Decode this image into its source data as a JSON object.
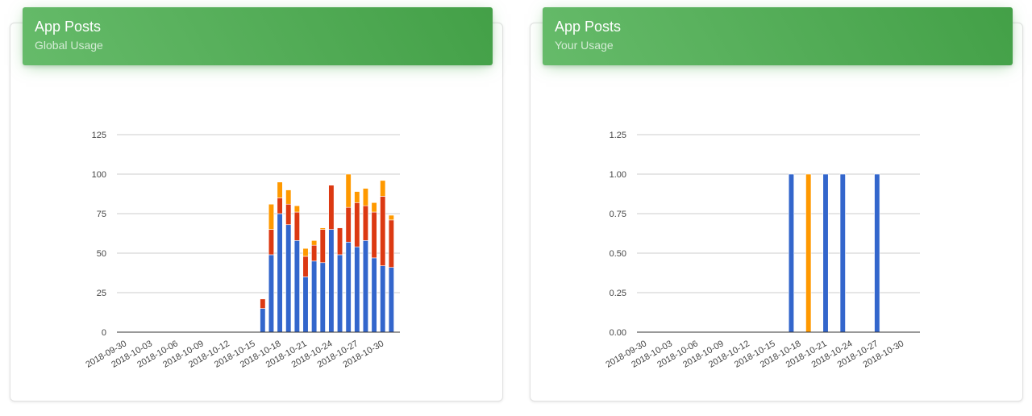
{
  "cards": [
    {
      "title": "App Posts",
      "subtitle": "Global Usage"
    },
    {
      "title": "App Posts",
      "subtitle": "Your Usage"
    }
  ],
  "colors": {
    "series1": "#3366cc",
    "series2": "#dc3912",
    "series3": "#ff9900",
    "header": "#4caf50"
  },
  "chart_data": [
    {
      "type": "bar",
      "stacked": true,
      "title": "",
      "xlabel": "",
      "ylabel": "",
      "ylim": [
        0,
        125
      ],
      "y_ticks": [
        "0",
        "25",
        "50",
        "75",
        "100",
        "125"
      ],
      "x_tick_labels": [
        "2018-09-30",
        "2018-10-03",
        "2018-10-06",
        "2018-10-09",
        "2018-10-12",
        "2018-10-15",
        "2018-10-18",
        "2018-10-21",
        "2018-10-24",
        "2018-10-27",
        "2018-10-30"
      ],
      "grid": true,
      "categories": [
        "2018-10-16",
        "2018-10-17",
        "2018-10-18",
        "2018-10-19",
        "2018-10-20",
        "2018-10-21",
        "2018-10-22",
        "2018-10-23",
        "2018-10-24",
        "2018-10-25",
        "2018-10-26",
        "2018-10-27",
        "2018-10-28",
        "2018-10-29",
        "2018-10-30",
        "2018-10-31"
      ],
      "series": [
        {
          "values": [
            15,
            49,
            75,
            68,
            58,
            35,
            45,
            44,
            65,
            49,
            57,
            54,
            58,
            47,
            42,
            41
          ]
        },
        {
          "values": [
            6,
            16,
            10,
            13,
            18,
            13,
            10,
            21,
            28,
            17,
            22,
            28,
            22,
            29,
            44,
            30
          ]
        },
        {
          "values": [
            0,
            16,
            10,
            9,
            4,
            5,
            3,
            1,
            0,
            0,
            21,
            7,
            11,
            6,
            10,
            3
          ]
        }
      ]
    },
    {
      "type": "bar",
      "stacked": true,
      "title": "",
      "xlabel": "",
      "ylabel": "",
      "ylim": [
        0,
        1.25
      ],
      "y_ticks": [
        "0.00",
        "0.25",
        "0.50",
        "0.75",
        "1.00",
        "1.25"
      ],
      "x_tick_labels": [
        "2018-09-30",
        "2018-10-03",
        "2018-10-06",
        "2018-10-09",
        "2018-10-12",
        "2018-10-15",
        "2018-10-18",
        "2018-10-21",
        "2018-10-24",
        "2018-10-27",
        "2018-10-30"
      ],
      "grid": true,
      "categories": [
        "2018-10-17",
        "2018-10-19",
        "2018-10-21",
        "2018-10-23",
        "2018-10-27"
      ],
      "series": [
        {
          "values": [
            1,
            0,
            1,
            1,
            1
          ]
        },
        {
          "values": [
            0,
            0,
            0,
            0,
            0
          ]
        },
        {
          "values": [
            0,
            1,
            0,
            0,
            0
          ]
        }
      ]
    }
  ]
}
